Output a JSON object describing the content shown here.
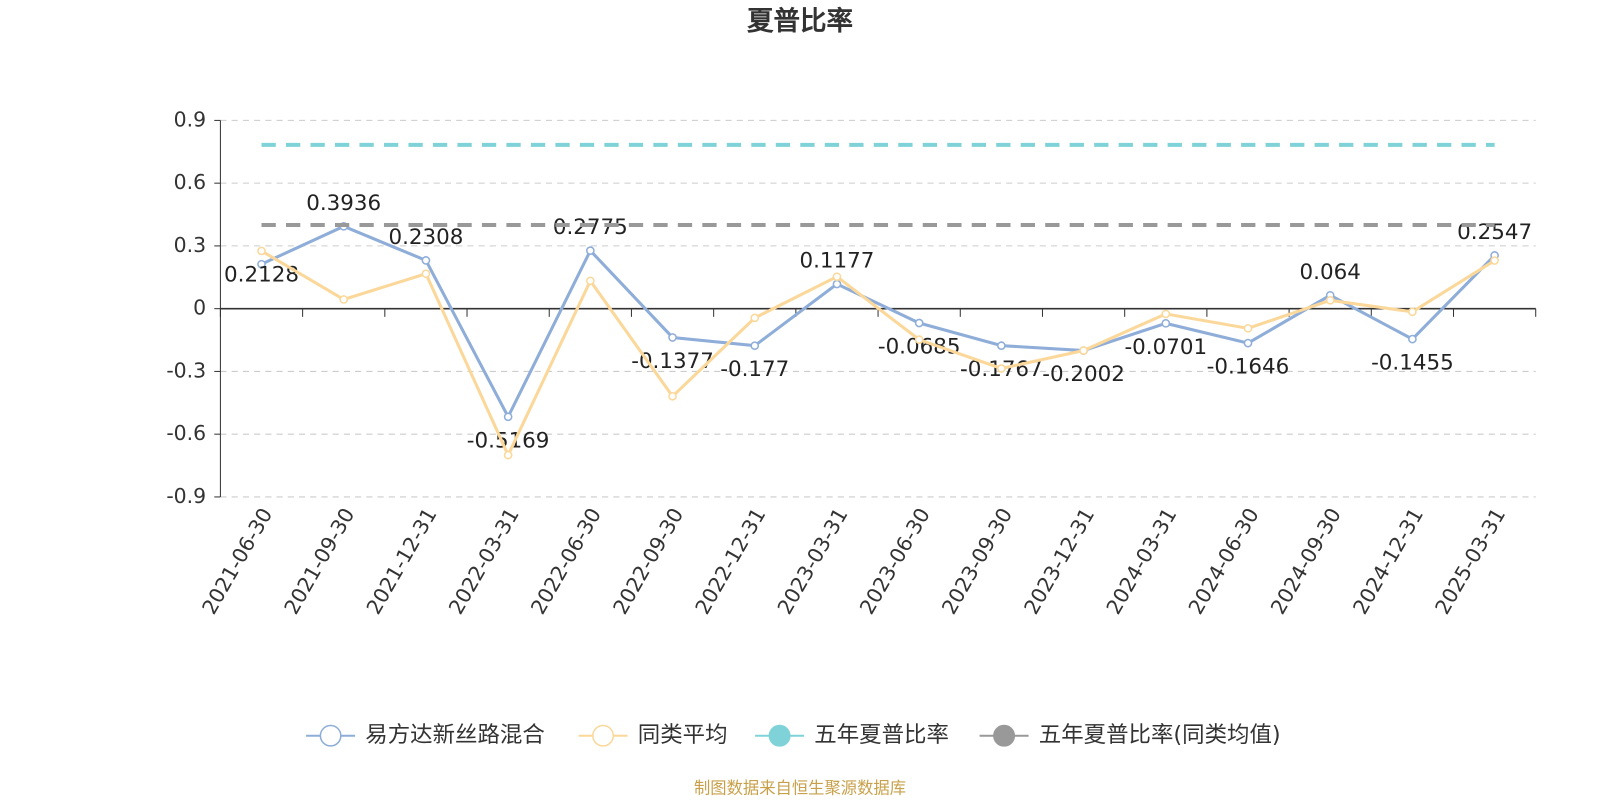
{
  "chart_data": {
    "type": "line",
    "title": "夏普比率",
    "categories": [
      "2021-06-30",
      "2021-09-30",
      "2021-12-31",
      "2022-03-31",
      "2022-06-30",
      "2022-09-30",
      "2022-12-31",
      "2023-03-31",
      "2023-06-30",
      "2023-09-30",
      "2023-12-31",
      "2024-03-31",
      "2024-06-30",
      "2024-09-30",
      "2024-12-31",
      "2025-03-31"
    ],
    "series": [
      {
        "name": "易方达新丝路混合",
        "color": "#8eadd8",
        "marker": "empty-circle",
        "labels": true,
        "values": [
          0.2128,
          0.3936,
          0.2308,
          -0.5169,
          0.2775,
          -0.1377,
          -0.177,
          0.1177,
          -0.0685,
          -0.1767,
          -0.2002,
          -0.0701,
          -0.1646,
          0.064,
          -0.1455,
          0.2547
        ]
      },
      {
        "name": "同类平均",
        "color": "#fbd89a",
        "marker": "empty-circle",
        "values": [
          0.276,
          0.044,
          0.167,
          -0.7,
          0.133,
          -0.419,
          -0.044,
          0.153,
          -0.148,
          -0.286,
          -0.2,
          -0.025,
          -0.094,
          0.04,
          -0.015,
          0.23
        ]
      },
      {
        "name": "五年夏普比率",
        "color": "#7fd3d8",
        "marker": "filled-circle",
        "dashed": true,
        "values": [
          0.783,
          0.783,
          0.783,
          0.783,
          0.783,
          0.783,
          0.783,
          0.783,
          0.783,
          0.783,
          0.783,
          0.783,
          0.783,
          0.783,
          0.783,
          0.783
        ]
      },
      {
        "name": "五年夏普比率(同类均值)",
        "color": "#999999",
        "marker": "filled-circle",
        "dashed": true,
        "values": [
          0.4,
          0.4,
          0.4,
          0.4,
          0.4,
          0.4,
          0.4,
          0.4,
          0.4,
          0.4,
          0.4,
          0.4,
          0.4,
          0.4,
          0.4,
          0.4
        ]
      }
    ],
    "ylim": [
      -0.9,
      0.9
    ],
    "yticks": [
      -0.9,
      -0.6,
      -0.3,
      0,
      0.3,
      0.6,
      0.9
    ],
    "grid": true,
    "legend": "bottom",
    "source": "制图数据来自恒生聚源数据库"
  }
}
